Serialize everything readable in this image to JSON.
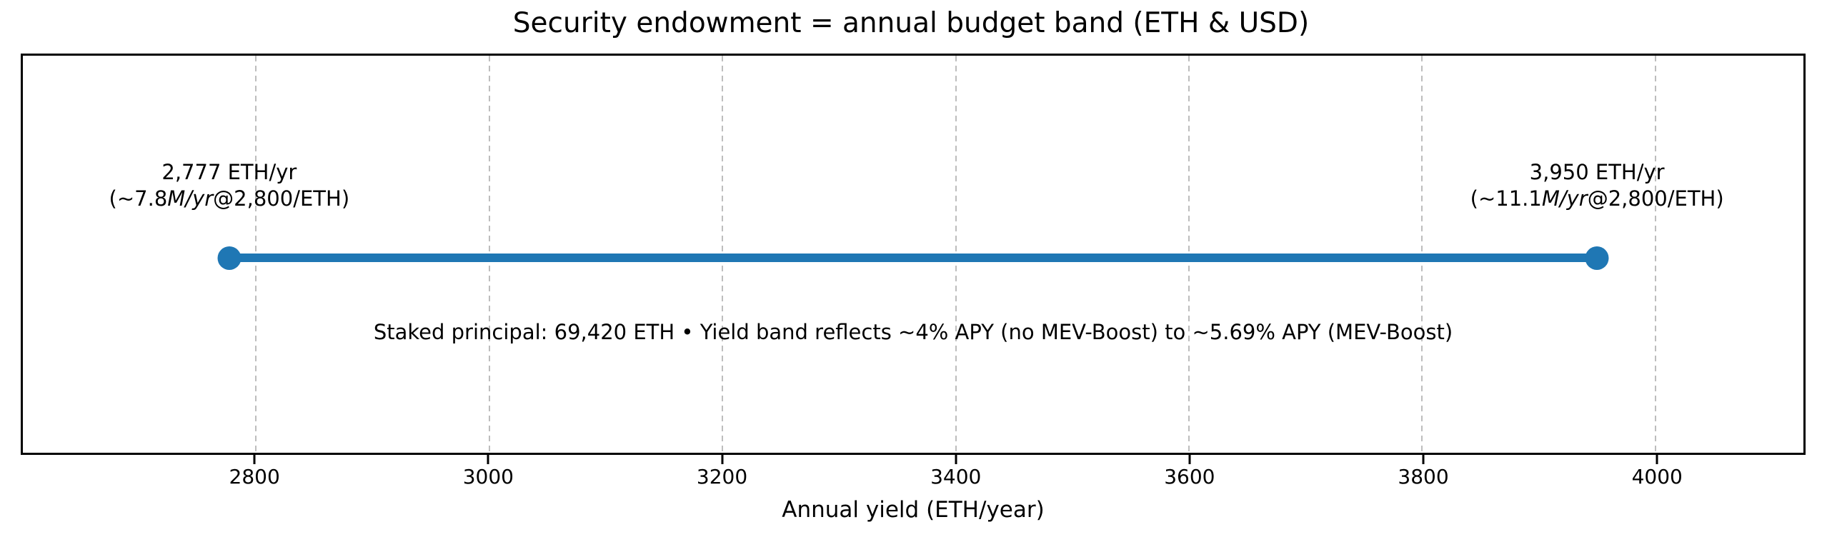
{
  "chart_data": {
    "type": "line",
    "subtype": "horizontal-range-band",
    "title": "Security endowment = annual budget band (ETH & USD)",
    "xlabel": "Annual yield (ETH/year)",
    "xlim": [
      2600,
      4127
    ],
    "x_ticks": [
      2800,
      3000,
      3200,
      3400,
      3600,
      3800,
      4000
    ],
    "grid": {
      "axis": "x",
      "style": "dashed",
      "color": "#bdbdbd"
    },
    "accent_color": "#1f77b4",
    "band": {
      "low": 2777,
      "high": 3950,
      "color": "#1f77b4",
      "low_label": {
        "line1": "2,777 ETH/yr",
        "line2_pre": "(~7.8",
        "line2_italic": "M/yr",
        "line2_post": "@2,800/ETH)"
      },
      "high_label": {
        "line1": "3,950 ETH/yr",
        "line2_pre": "(~11.1",
        "line2_italic": "M/yr",
        "line2_post": "@2,800/ETH)"
      }
    },
    "annotation": "Staked principal: 69,420 ETH • Yield band reflects ~4% APY (no MEV-Boost) to ~5.69% APY (MEV-Boost)"
  }
}
